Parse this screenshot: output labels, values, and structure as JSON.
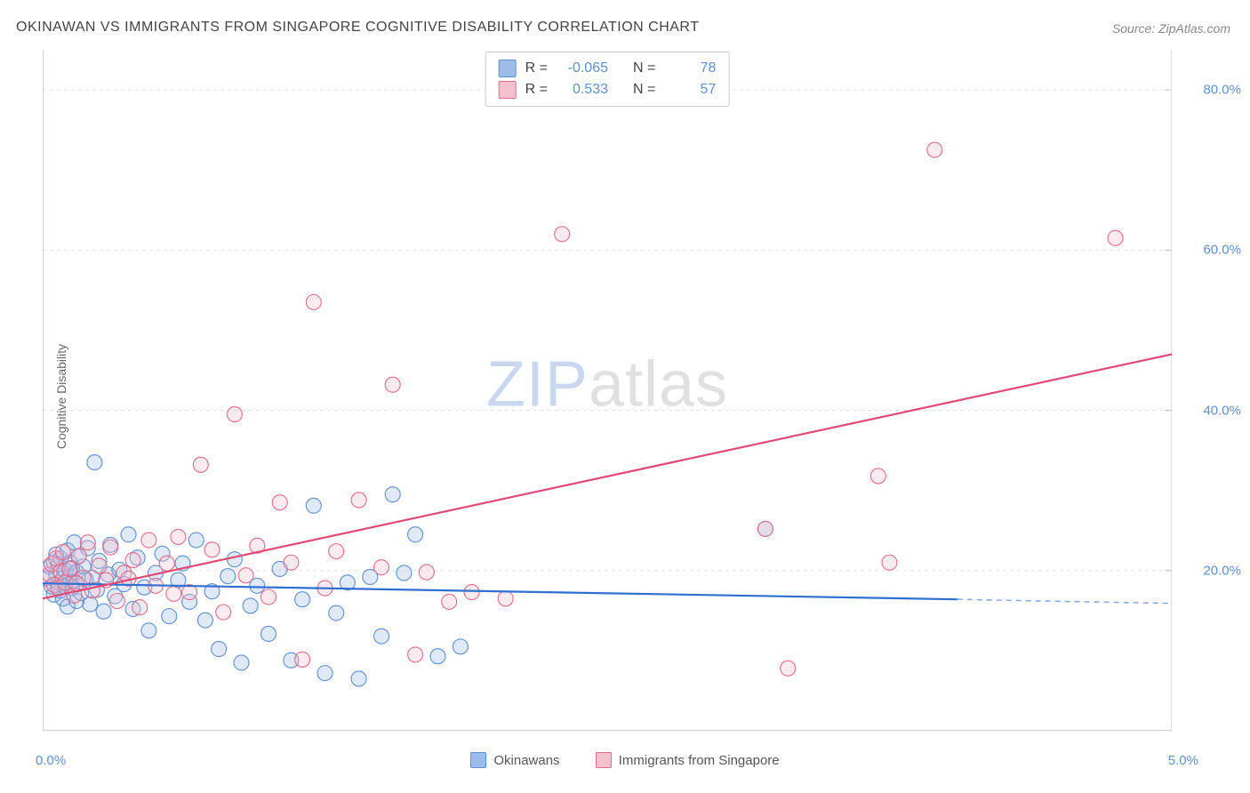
{
  "title": "OKINAWAN VS IMMIGRANTS FROM SINGAPORE COGNITIVE DISABILITY CORRELATION CHART",
  "source": "Source: ZipAtlas.com",
  "ylabel": "Cognitive Disability",
  "watermark": {
    "left": "ZIP",
    "right": "atlas"
  },
  "chart": {
    "type": "scatter",
    "xlim": [
      0.0,
      5.0
    ],
    "ylim": [
      0.0,
      85.0
    ],
    "xticks_major": [
      0.0,
      5.0
    ],
    "xticks_minor_step": 0.5,
    "yticks": [
      20.0,
      40.0,
      60.0,
      80.0
    ],
    "xtick_labels": [
      "0.0%",
      "5.0%"
    ],
    "ytick_labels": [
      "20.0%",
      "40.0%",
      "60.0%",
      "80.0%"
    ],
    "background_color": "#ffffff",
    "grid_color": "#e2e2e2",
    "grid_dash": "4,4",
    "axis_color": "#bfbfbf",
    "tick_color": "#bfbfbf",
    "marker_radius": 8.5,
    "marker_stroke_width": 1.1,
    "marker_fill_opacity": 0.32,
    "trend_stroke_width": 2.2,
    "trend_dash_extrapolate": "6,5",
    "axis_label_fontsize": 15,
    "axis_label_color": "#5b8fd6",
    "title_fontsize": 16,
    "title_color": "#444444"
  },
  "series": [
    {
      "id": "okinawans",
      "label": "Okinawans",
      "fill": "#9dbce8",
      "stroke": "#5b8fd6",
      "trend_color": "#2f6fd0",
      "R": "-0.065",
      "N": "78",
      "trend": {
        "x1": 0.0,
        "y1": 18.4,
        "x2": 4.05,
        "y2": 16.4,
        "x_extrap": 5.0,
        "y_extrap": 15.9
      },
      "points": [
        [
          0.02,
          19
        ],
        [
          0.03,
          20.5
        ],
        [
          0.04,
          18
        ],
        [
          0.05,
          21
        ],
        [
          0.05,
          17
        ],
        [
          0.06,
          22
        ],
        [
          0.06,
          19.5
        ],
        [
          0.07,
          18.5
        ],
        [
          0.07,
          20.8
        ],
        [
          0.08,
          17.5
        ],
        [
          0.08,
          21.5
        ],
        [
          0.09,
          19
        ],
        [
          0.09,
          16.5
        ],
        [
          0.1,
          20
        ],
        [
          0.1,
          18
        ],
        [
          0.11,
          22.5
        ],
        [
          0.11,
          15.5
        ],
        [
          0.12,
          19.2
        ],
        [
          0.12,
          21
        ],
        [
          0.13,
          17.8
        ],
        [
          0.13,
          20.3
        ],
        [
          0.14,
          23.5
        ],
        [
          0.14,
          18.6
        ],
        [
          0.15,
          16.2
        ],
        [
          0.15,
          19.8
        ],
        [
          0.16,
          21.8
        ],
        [
          0.17,
          17.2
        ],
        [
          0.18,
          20.5
        ],
        [
          0.19,
          18.9
        ],
        [
          0.2,
          22.8
        ],
        [
          0.21,
          15.8
        ],
        [
          0.22,
          19.1
        ],
        [
          0.23,
          33.5
        ],
        [
          0.24,
          17.6
        ],
        [
          0.25,
          21.2
        ],
        [
          0.27,
          14.9
        ],
        [
          0.29,
          19.5
        ],
        [
          0.3,
          23.2
        ],
        [
          0.32,
          16.8
        ],
        [
          0.34,
          20.1
        ],
        [
          0.36,
          18.3
        ],
        [
          0.38,
          24.5
        ],
        [
          0.4,
          15.2
        ],
        [
          0.42,
          21.6
        ],
        [
          0.45,
          17.9
        ],
        [
          0.47,
          12.5
        ],
        [
          0.5,
          19.7
        ],
        [
          0.53,
          22.1
        ],
        [
          0.56,
          14.3
        ],
        [
          0.6,
          18.8
        ],
        [
          0.62,
          20.9
        ],
        [
          0.65,
          16.1
        ],
        [
          0.68,
          23.8
        ],
        [
          0.72,
          13.8
        ],
        [
          0.75,
          17.4
        ],
        [
          0.78,
          10.2
        ],
        [
          0.82,
          19.3
        ],
        [
          0.85,
          21.4
        ],
        [
          0.88,
          8.5
        ],
        [
          0.92,
          15.6
        ],
        [
          0.95,
          18.1
        ],
        [
          1.0,
          12.1
        ],
        [
          1.05,
          20.2
        ],
        [
          1.1,
          8.8
        ],
        [
          1.15,
          16.4
        ],
        [
          1.2,
          28.1
        ],
        [
          1.25,
          7.2
        ],
        [
          1.3,
          14.7
        ],
        [
          1.35,
          18.5
        ],
        [
          1.4,
          6.5
        ],
        [
          1.5,
          11.8
        ],
        [
          1.6,
          19.7
        ],
        [
          1.65,
          24.5
        ],
        [
          1.75,
          9.3
        ],
        [
          1.85,
          10.5
        ],
        [
          1.55,
          29.5
        ],
        [
          3.2,
          25.2
        ],
        [
          1.45,
          19.2
        ]
      ]
    },
    {
      "id": "singapore",
      "label": "Immigrants from Singapore",
      "fill": "#f4c1cc",
      "stroke": "#e66a8a",
      "trend_color": "#e24a76",
      "R": "0.533",
      "N": "57",
      "trend": {
        "x1": 0.0,
        "y1": 16.5,
        "x2": 5.0,
        "y2": 47.0,
        "x_extrap": 5.0,
        "y_extrap": 47.0
      },
      "points": [
        [
          0.03,
          19.5
        ],
        [
          0.04,
          20.8
        ],
        [
          0.05,
          18.2
        ],
        [
          0.06,
          21.5
        ],
        [
          0.07,
          17.8
        ],
        [
          0.08,
          19.9
        ],
        [
          0.09,
          22.3
        ],
        [
          0.1,
          18.5
        ],
        [
          0.12,
          20.2
        ],
        [
          0.14,
          16.9
        ],
        [
          0.16,
          21.8
        ],
        [
          0.18,
          19.1
        ],
        [
          0.2,
          23.5
        ],
        [
          0.22,
          17.5
        ],
        [
          0.25,
          20.6
        ],
        [
          0.28,
          18.8
        ],
        [
          0.3,
          22.9
        ],
        [
          0.33,
          16.2
        ],
        [
          0.36,
          19.7
        ],
        [
          0.4,
          21.3
        ],
        [
          0.43,
          15.4
        ],
        [
          0.47,
          23.8
        ],
        [
          0.5,
          18.1
        ],
        [
          0.55,
          20.9
        ],
        [
          0.6,
          24.2
        ],
        [
          0.65,
          17.3
        ],
        [
          0.7,
          33.2
        ],
        [
          0.75,
          22.6
        ],
        [
          0.8,
          14.8
        ],
        [
          0.85,
          39.5
        ],
        [
          0.9,
          19.4
        ],
        [
          0.95,
          23.1
        ],
        [
          1.0,
          16.7
        ],
        [
          1.05,
          28.5
        ],
        [
          1.1,
          21.0
        ],
        [
          1.15,
          8.9
        ],
        [
          1.2,
          53.5
        ],
        [
          1.25,
          17.8
        ],
        [
          1.3,
          22.4
        ],
        [
          1.4,
          28.8
        ],
        [
          1.5,
          20.4
        ],
        [
          1.55,
          43.2
        ],
        [
          1.65,
          9.5
        ],
        [
          1.7,
          19.8
        ],
        [
          1.8,
          16.1
        ],
        [
          1.9,
          17.3
        ],
        [
          2.05,
          16.5
        ],
        [
          2.3,
          62.0
        ],
        [
          3.2,
          25.2
        ],
        [
          3.3,
          7.8
        ],
        [
          3.7,
          31.8
        ],
        [
          3.75,
          21.0
        ],
        [
          3.95,
          72.5
        ],
        [
          4.75,
          61.5
        ],
        [
          0.15,
          18.4
        ],
        [
          0.38,
          19.0
        ],
        [
          0.58,
          17.1
        ]
      ]
    }
  ],
  "legend_top": {
    "border_color": "#cccccc",
    "bg": "#ffffff",
    "label_R": "R =",
    "label_N": "N ="
  },
  "legend_bottom": {
    "fontsize": 15,
    "color": "#555555"
  }
}
